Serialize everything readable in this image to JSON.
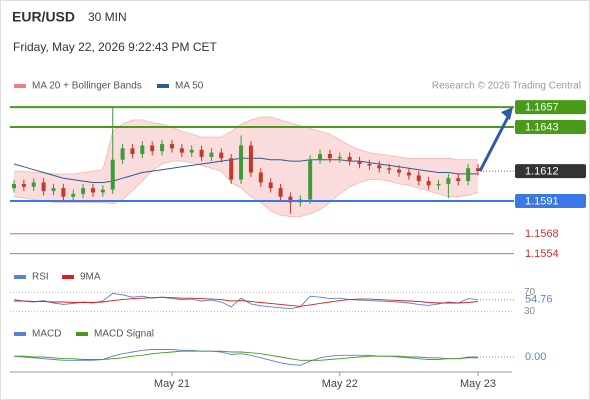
{
  "chart_data": [
    {
      "type": "candlestick",
      "title": "EUR/USD",
      "subtitle": "30 MIN",
      "date": "Friday, May 22, 2026 9:22:43 PM CET",
      "annotation": "Research © 2026 Trading Central",
      "categories": [
        null,
        null,
        null,
        null,
        null,
        null,
        null,
        null,
        null,
        null,
        null,
        null,
        null,
        null,
        null,
        null,
        "May 21",
        null,
        null,
        null,
        null,
        null,
        null,
        null,
        null,
        null,
        null,
        null,
        null,
        null,
        null,
        null,
        null,
        "May 22",
        null,
        null,
        null,
        null,
        null,
        null,
        null,
        null,
        null,
        null,
        null,
        null,
        null,
        "May 23"
      ],
      "open": [
        1.16,
        1.1603,
        1.1601,
        1.1604,
        1.1598,
        1.16,
        1.1594,
        1.1596,
        1.16,
        1.1597,
        1.1599,
        1.162,
        1.1628,
        1.1624,
        1.163,
        1.1626,
        1.1631,
        1.1628,
        1.1625,
        1.1627,
        1.1622,
        1.1625,
        1.1621,
        1.1606,
        1.163,
        1.1611,
        1.1604,
        1.16,
        1.1594,
        1.159,
        1.1592,
        1.162,
        1.1624,
        1.1621,
        1.1622,
        1.1619,
        1.1617,
        1.1616,
        1.1614,
        1.1613,
        1.1611,
        1.1609,
        1.1605,
        1.1602,
        1.1603,
        1.1607,
        1.1605,
        1.1614
      ],
      "high": [
        1.1606,
        1.1606,
        1.1607,
        1.1607,
        1.1603,
        1.1603,
        1.1599,
        1.1603,
        1.1603,
        1.1602,
        1.1657,
        1.1631,
        1.1631,
        1.1633,
        1.1633,
        1.1634,
        1.1634,
        1.1631,
        1.163,
        1.163,
        1.1628,
        1.1628,
        1.1624,
        1.1637,
        1.1633,
        1.1614,
        1.1607,
        1.1603,
        1.1597,
        1.1595,
        1.1623,
        1.1627,
        1.1627,
        1.1625,
        1.1625,
        1.1622,
        1.162,
        1.1619,
        1.1617,
        1.1616,
        1.1614,
        1.1612,
        1.1608,
        1.1606,
        1.161,
        1.161,
        1.1617,
        1.1617
      ],
      "low": [
        1.1597,
        1.1598,
        1.1598,
        1.1595,
        1.1595,
        1.1591,
        1.1591,
        1.1593,
        1.1594,
        1.1594,
        1.1596,
        1.1617,
        1.1621,
        1.1621,
        1.1623,
        1.1623,
        1.1625,
        1.1622,
        1.1622,
        1.1619,
        1.1619,
        1.1618,
        1.1603,
        1.1603,
        1.1608,
        1.1601,
        1.1597,
        1.1591,
        1.1582,
        1.1587,
        1.1589,
        1.1617,
        1.1618,
        1.1618,
        1.1616,
        1.1614,
        1.1613,
        1.1611,
        1.161,
        1.1608,
        1.1606,
        1.1602,
        1.1599,
        1.1599,
        1.1593,
        1.1602,
        1.1602,
        1.1609
      ],
      "close": [
        1.1603,
        1.1601,
        1.1604,
        1.1598,
        1.16,
        1.1594,
        1.1596,
        1.16,
        1.1597,
        1.1599,
        1.162,
        1.1628,
        1.1624,
        1.163,
        1.1626,
        1.1631,
        1.1628,
        1.1625,
        1.1627,
        1.1622,
        1.1625,
        1.1621,
        1.1606,
        1.163,
        1.1611,
        1.1604,
        1.16,
        1.1594,
        1.159,
        1.1592,
        1.162,
        1.1624,
        1.1621,
        1.1622,
        1.1619,
        1.1617,
        1.1616,
        1.1614,
        1.1613,
        1.1611,
        1.1609,
        1.1605,
        1.1602,
        1.1603,
        1.1607,
        1.1605,
        1.1614,
        1.1612
      ],
      "up_color": "#3f9a3a",
      "down_color": "#c0392b",
      "series": [
        {
          "name": "MA 20 + Bollinger Bands",
          "color": "#f08080",
          "upper": [
            1.1612,
            1.1612,
            1.1611,
            1.1611,
            1.161,
            1.161,
            1.161,
            1.1611,
            1.1612,
            1.1613,
            1.164,
            1.1645,
            1.1648,
            1.1648,
            1.1646,
            1.1645,
            1.1643,
            1.164,
            1.1638,
            1.1636,
            1.1636,
            1.1636,
            1.164,
            1.1645,
            1.1648,
            1.165,
            1.165,
            1.1648,
            1.1646,
            1.1644,
            1.1642,
            1.164,
            1.1638,
            1.1634,
            1.163,
            1.1627,
            1.1625,
            1.1624,
            1.1623,
            1.1622,
            1.1621,
            1.1621,
            1.1621,
            1.1621,
            1.1621,
            1.162,
            1.162,
            1.162
          ],
          "lower": [
            1.1594,
            1.1593,
            1.1592,
            1.1591,
            1.159,
            1.159,
            1.159,
            1.159,
            1.159,
            1.159,
            1.1589,
            1.1592,
            1.1598,
            1.1605,
            1.1612,
            1.1617,
            1.1619,
            1.1619,
            1.1618,
            1.1616,
            1.1614,
            1.1612,
            1.1604,
            1.16,
            1.1594,
            1.159,
            1.1584,
            1.1581,
            1.158,
            1.158,
            1.1582,
            1.1585,
            1.159,
            1.1596,
            1.1601,
            1.1604,
            1.1606,
            1.1606,
            1.1605,
            1.1603,
            1.1602,
            1.16,
            1.1598,
            1.1596,
            1.1594,
            1.1594,
            1.1595,
            1.1597
          ]
        },
        {
          "name": "MA 50",
          "color": "#2e5a9a",
          "values": [
            1.1617,
            1.1615,
            1.1613,
            1.1611,
            1.1609,
            1.1607,
            1.1606,
            1.1605,
            1.1604,
            1.1604,
            1.1605,
            1.1607,
            1.1609,
            1.1611,
            1.1612,
            1.1613,
            1.1614,
            1.1615,
            1.1616,
            1.1617,
            1.1618,
            1.1619,
            1.162,
            1.1621,
            1.1621,
            1.1621,
            1.162,
            1.162,
            1.1619,
            1.1619,
            1.162,
            1.162,
            1.162,
            1.162,
            1.1619,
            1.1619,
            1.1618,
            1.1617,
            1.1616,
            1.1615,
            1.1614,
            1.1613,
            1.1612,
            1.1611,
            1.1611,
            1.161,
            1.161,
            1.161
          ]
        }
      ],
      "levels": [
        {
          "value": 1.1657,
          "color": "#4a9a1a",
          "boxed": true,
          "line": "solid"
        },
        {
          "value": 1.1643,
          "color": "#4a9a1a",
          "boxed": true,
          "line": "solid"
        },
        {
          "value": 1.1612,
          "color": "#333333",
          "boxed": true,
          "line": "dotted"
        },
        {
          "value": 1.1591,
          "color": "#3b78e7",
          "boxed": true,
          "line": "solid"
        },
        {
          "value": 1.1568,
          "color": "#e06060",
          "boxed": false,
          "line": "solid"
        },
        {
          "value": 1.1554,
          "color": "#e06060",
          "boxed": false,
          "line": "solid"
        }
      ],
      "ylim": [
        1.1546,
        1.1669
      ]
    },
    {
      "type": "line",
      "series": [
        {
          "name": "RSI",
          "color": "#5b7fd6",
          "values": [
            55,
            52,
            50,
            53,
            48,
            45,
            47,
            50,
            48,
            52,
            68,
            65,
            60,
            62,
            58,
            60,
            57,
            55,
            56,
            52,
            54,
            50,
            40,
            58,
            46,
            42,
            40,
            38,
            36,
            40,
            62,
            60,
            57,
            58,
            55,
            54,
            53,
            52,
            51,
            50,
            48,
            45,
            43,
            46,
            50,
            48,
            57,
            54.76
          ]
        },
        {
          "name": "9MA",
          "color": "#d42020",
          "values": [
            52,
            52,
            51,
            51,
            50,
            50,
            49,
            49,
            49,
            50,
            53,
            55,
            57,
            58,
            59,
            60,
            59,
            58,
            58,
            57,
            56,
            55,
            52,
            53,
            51,
            49,
            47,
            45,
            43,
            41,
            44,
            47,
            50,
            53,
            55,
            56,
            56,
            55,
            54,
            53,
            52,
            51,
            49,
            48,
            48,
            48,
            49,
            51
          ]
        }
      ],
      "ylim": [
        25,
        75
      ],
      "yticks": [
        70,
        30
      ]
    },
    {
      "type": "line",
      "series": [
        {
          "name": "MACD",
          "color": "#5b7fd6",
          "values": [
            0.0001,
            0,
            -0.0001,
            -0.0002,
            -0.0003,
            -0.0004,
            -0.0004,
            -0.0004,
            -0.0004,
            -0.0003,
            0.0001,
            0.0004,
            0.0006,
            0.0008,
            0.0009,
            0.0009,
            0.0009,
            0.0008,
            0.0008,
            0.0007,
            0.0007,
            0.0006,
            0.0003,
            0.0004,
            0.0002,
            -0.0001,
            -0.0004,
            -0.0007,
            -0.0009,
            -0.001,
            -0.0005,
            -0.0001,
            0.0001,
            0.0002,
            0.0002,
            0.0002,
            0.0002,
            0.0001,
            0.0001,
            0,
            -0.0001,
            -0.0002,
            -0.0003,
            -0.0003,
            -0.0002,
            -0.0002,
            0,
            0
          ],
          "value_labels": [
            null,
            null,
            null,
            null,
            null,
            null,
            null,
            null,
            null,
            null,
            null,
            null,
            null,
            null,
            null,
            null,
            null,
            null,
            null,
            null,
            null,
            null,
            null,
            null,
            null,
            null,
            null,
            null,
            null,
            null,
            null,
            null,
            null,
            null,
            null,
            null,
            null,
            null,
            null,
            null,
            null,
            null,
            null,
            null,
            null,
            null,
            null,
            "0.00"
          ]
        },
        {
          "name": "MACD Signal",
          "color": "#4a9a1a",
          "values": [
            0.0001,
            0.0001,
            0,
            0,
            -0.0001,
            -0.0002,
            -0.0002,
            -0.0003,
            -0.0003,
            -0.0003,
            -0.0002,
            -0.0001,
            0.0001,
            0.0002,
            0.0004,
            0.0005,
            0.0006,
            0.0007,
            0.0007,
            0.0007,
            0.0007,
            0.0007,
            0.0006,
            0.0006,
            0.0005,
            0.0004,
            0.0002,
            0,
            -0.0002,
            -0.0004,
            -0.0004,
            -0.0004,
            -0.0003,
            -0.0002,
            -0.0001,
            0,
            0.0001,
            0.0001,
            0.0001,
            0.0001,
            0,
            0,
            -0.0001,
            -0.0001,
            -0.0002,
            -0.0002,
            -0.0001,
            -0.0001
          ]
        }
      ],
      "ylim": [
        -0.0012,
        0.0012
      ]
    }
  ]
}
